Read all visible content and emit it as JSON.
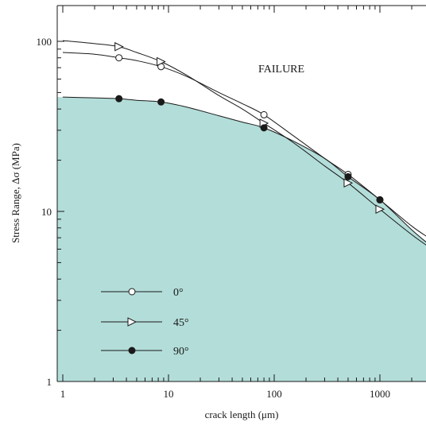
{
  "chart_data": {
    "type": "line",
    "title": "",
    "xlabel": "crack length (μm)",
    "ylabel": "Stress Range, Δσ (MPa)",
    "x_scale": "log",
    "y_scale": "log",
    "xlim": [
      1,
      3000
    ],
    "ylim": [
      1,
      130
    ],
    "x_ticks": [
      1,
      10,
      100,
      1000
    ],
    "x_tick_labels": [
      "1",
      "10",
      "100",
      "1000"
    ],
    "y_ticks": [
      1,
      10,
      100
    ],
    "y_tick_labels": [
      "1",
      "10",
      "100"
    ],
    "grid": false,
    "legend_position": "bottom-left",
    "annotations": [
      {
        "text": "FAILURE",
        "x": 130,
        "y": 70
      }
    ],
    "shaded_region": {
      "label": "below 90° curve",
      "color": "#b3ddd9"
    },
    "series": [
      {
        "name": "0°",
        "marker": "open-circle",
        "curve_x": [
          1,
          2,
          3.4,
          5,
          8.5,
          15,
          30,
          50,
          80,
          150,
          300,
          500,
          1000,
          2000,
          3000
        ],
        "curve_y": [
          86,
          84,
          80,
          77,
          71,
          62,
          50,
          43,
          37,
          28,
          20.5,
          16.5,
          11.7,
          8.2,
          6.9
        ],
        "points_x": [
          3.4,
          8.5,
          80,
          500,
          1000
        ],
        "points_y": [
          80,
          71,
          37,
          16.5,
          11.7
        ]
      },
      {
        "name": "45°",
        "marker": "open-triangle-right",
        "curve_x": [
          1,
          2,
          3.4,
          5,
          8.5,
          15,
          30,
          50,
          80,
          150,
          300,
          500,
          1000,
          2000,
          3000
        ],
        "curve_y": [
          101,
          97,
          93,
          86,
          76,
          63,
          48,
          40,
          33,
          25.5,
          18.5,
          14.7,
          10.3,
          7.3,
          6.1
        ],
        "points_x": [
          3.4,
          8.5,
          80,
          500,
          1000
        ],
        "points_y": [
          93,
          76,
          33,
          14.7,
          10.3
        ]
      },
      {
        "name": "90°",
        "marker": "filled-circle",
        "curve_x": [
          1,
          2,
          3.4,
          5,
          8.5,
          15,
          30,
          50,
          80,
          150,
          300,
          500,
          1000,
          2000,
          3000
        ],
        "curve_y": [
          47,
          46.5,
          46,
          45,
          44,
          41,
          36.5,
          33.5,
          31,
          26,
          20.5,
          16,
          11.7,
          7.8,
          6.3
        ],
        "points_x": [
          3.4,
          8.5,
          80,
          500,
          1000
        ],
        "points_y": [
          46,
          44,
          31,
          16,
          11.7
        ]
      }
    ],
    "colors": {
      "fill": "#b3ddd9",
      "line": "#1a1a1a"
    }
  }
}
